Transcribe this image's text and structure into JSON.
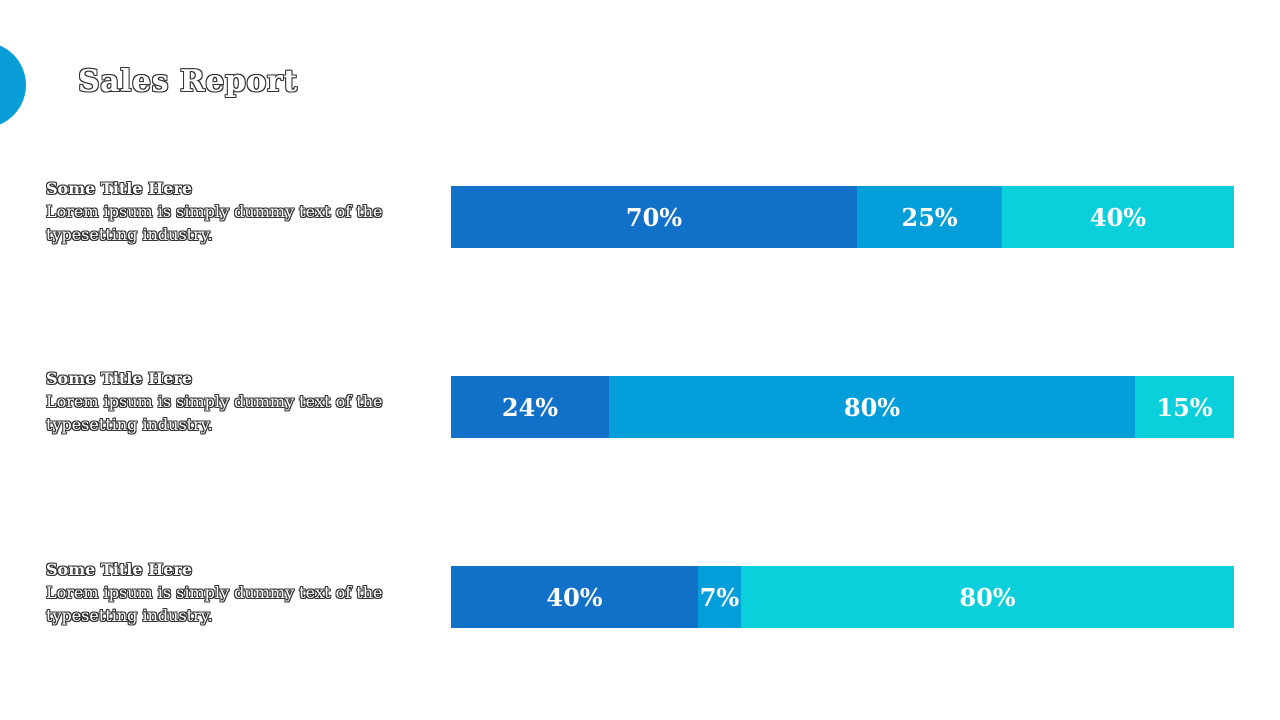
{
  "title": "Sales Report",
  "rows": [
    {
      "heading": "Some Title Here",
      "text": "Lorem ipsum is simply dummy text of the typesetting industry."
    },
    {
      "heading": "Some Title Here",
      "text": "Lorem ipsum is simply dummy text of the typesetting industry."
    },
    {
      "heading": "Some Title Here",
      "text": "Lorem ipsum is simply dummy text of the typesetting industry."
    }
  ],
  "colors": {
    "segment_1": "#1170c8",
    "segment_2": "#049fda",
    "segment_3": "#0bd0dc",
    "accent_shape": "#0a9ed9"
  },
  "chart_data": {
    "type": "bar",
    "orientation": "horizontal",
    "stacked": true,
    "bars": [
      {
        "values": [
          70,
          25,
          40
        ],
        "labels": [
          "70%",
          "25%",
          "40%"
        ]
      },
      {
        "values": [
          24,
          80,
          15
        ],
        "labels": [
          "24%",
          "80%",
          "15%"
        ]
      },
      {
        "values": [
          40,
          7,
          80
        ],
        "labels": [
          "40%",
          "7%",
          "80%"
        ]
      }
    ],
    "grid": false,
    "legend": "none"
  }
}
